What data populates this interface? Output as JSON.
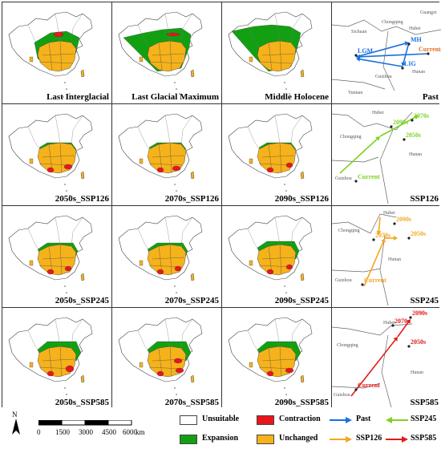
{
  "panels": [
    {
      "label": "Last Interglacial"
    },
    {
      "label": "Last Glacial Maximum"
    },
    {
      "label": "Middle Holocene"
    },
    {
      "label": "Past",
      "detail": {
        "provinces": [
          "Sichuan",
          "Chongqing",
          "Guizhou",
          "Yunnan",
          "Hubei",
          "Hunan",
          "Guangxi"
        ],
        "points": [
          "LGM",
          "MH",
          "LIG",
          "Current"
        ]
      }
    },
    {
      "label": "2050s_SSP126"
    },
    {
      "label": "2070s_SSP126"
    },
    {
      "label": "2090s_SSP126"
    },
    {
      "label": "SSP126",
      "detail": {
        "provinces": [
          "Hubei",
          "Chongqing",
          "Guizhou",
          "Hunan"
        ],
        "points": [
          "2070s",
          "2090s",
          "2050s",
          "Current"
        ]
      }
    },
    {
      "label": "2050s_SSP245"
    },
    {
      "label": "2070s_SSP245"
    },
    {
      "label": "2090s_SSP245"
    },
    {
      "label": "SSP245",
      "detail": {
        "provinces": [
          "Hubei",
          "Chongqing",
          "Guizhou",
          "Hunan"
        ],
        "points": [
          "2090s",
          "2070s",
          "2050s",
          "Current"
        ]
      }
    },
    {
      "label": "2050s_SSP585"
    },
    {
      "label": "2070s_SSP585"
    },
    {
      "label": "2090s_SSP585"
    },
    {
      "label": "SSP585",
      "detail": {
        "provinces": [
          "Hubei",
          "Chongqing",
          "Guizhou",
          "Hunan"
        ],
        "points": [
          "2090s",
          "2070s",
          "2050s",
          "Current"
        ]
      }
    }
  ],
  "legend": {
    "unsuitable": "Unsuitable",
    "contraction": "Contraction",
    "expansion": "Expansion",
    "unchanged": "Unchanged",
    "past": "Past",
    "ssp126": "SSP126",
    "ssp245": "SSP245",
    "ssp585": "SSP585"
  },
  "scale": {
    "north": "N",
    "ticks": [
      "0",
      "1500",
      "3000",
      "4500",
      "6000"
    ],
    "unit": "km"
  },
  "colors": {
    "unsuitable": "#ffffff",
    "contraction": "#e8161b",
    "expansion": "#12a012",
    "unchanged": "#f5b21b",
    "past": "#1a6fe0",
    "ssp126": "#f5a623",
    "ssp245": "#7ed321",
    "ssp585": "#e01a1a"
  }
}
